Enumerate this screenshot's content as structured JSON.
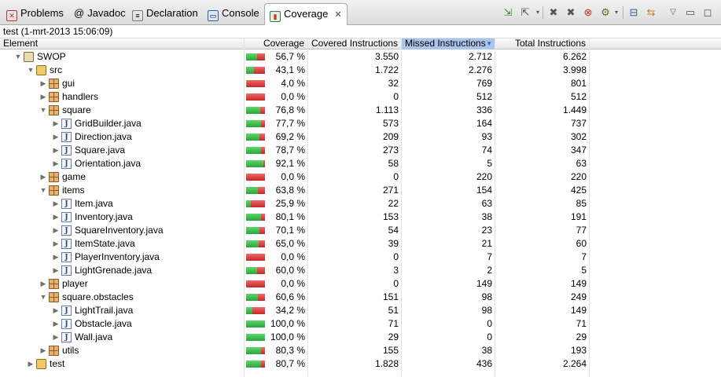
{
  "tabs": [
    {
      "label": "Problems",
      "icon": "problems-icon",
      "active": false
    },
    {
      "label": "Javadoc",
      "icon": "javadoc-icon",
      "active": false
    },
    {
      "label": "Declaration",
      "icon": "declaration-icon",
      "active": false
    },
    {
      "label": "Console",
      "icon": "console-icon",
      "active": false
    },
    {
      "label": "Coverage",
      "icon": "coverage-icon",
      "active": true
    }
  ],
  "toolbar": [
    "export-icon",
    "import-icon",
    "remove-session-icon",
    "remove-all-sessions-icon",
    "merge-sessions-icon",
    "relaunch-icon",
    "collapse-all-icon",
    "link-with-editor-icon",
    "view-menu-icon",
    "minimize-icon",
    "maximize-icon"
  ],
  "session_title": "test (1-mrt-2013 15:06:09)",
  "columns": {
    "element": "Element",
    "coverage": "Coverage",
    "covered": "Covered Instructions",
    "missed": "Missed Instructions",
    "total": "Total Instructions"
  },
  "rows": [
    {
      "name": "SWOP",
      "type": "project",
      "depth": 0,
      "expanded": true,
      "coverage": "56,7 %",
      "cov": 0.567,
      "covered": "3.550",
      "missed": "2.712",
      "total": "6.262"
    },
    {
      "name": "src",
      "type": "folder",
      "depth": 1,
      "expanded": true,
      "coverage": "43,1 %",
      "cov": 0.431,
      "covered": "1.722",
      "missed": "2.276",
      "total": "3.998"
    },
    {
      "name": "gui",
      "type": "package",
      "depth": 2,
      "expanded": false,
      "coverage": "4,0 %",
      "cov": 0.04,
      "covered": "32",
      "missed": "769",
      "total": "801"
    },
    {
      "name": "handlers",
      "type": "package",
      "depth": 2,
      "expanded": false,
      "coverage": "0,0 %",
      "cov": 0.0,
      "covered": "0",
      "missed": "512",
      "total": "512"
    },
    {
      "name": "square",
      "type": "package",
      "depth": 2,
      "expanded": true,
      "coverage": "76,8 %",
      "cov": 0.768,
      "covered": "1.113",
      "missed": "336",
      "total": "1.449"
    },
    {
      "name": "GridBuilder.java",
      "type": "java",
      "depth": 3,
      "expanded": false,
      "coverage": "77,7 %",
      "cov": 0.777,
      "covered": "573",
      "missed": "164",
      "total": "737"
    },
    {
      "name": "Direction.java",
      "type": "java",
      "depth": 3,
      "expanded": false,
      "coverage": "69,2 %",
      "cov": 0.692,
      "covered": "209",
      "missed": "93",
      "total": "302"
    },
    {
      "name": "Square.java",
      "type": "java",
      "depth": 3,
      "expanded": false,
      "coverage": "78,7 %",
      "cov": 0.787,
      "covered": "273",
      "missed": "74",
      "total": "347"
    },
    {
      "name": "Orientation.java",
      "type": "java",
      "depth": 3,
      "expanded": false,
      "coverage": "92,1 %",
      "cov": 0.921,
      "covered": "58",
      "missed": "5",
      "total": "63"
    },
    {
      "name": "game",
      "type": "package",
      "depth": 2,
      "expanded": false,
      "coverage": "0,0 %",
      "cov": 0.0,
      "covered": "0",
      "missed": "220",
      "total": "220"
    },
    {
      "name": "items",
      "type": "package",
      "depth": 2,
      "expanded": true,
      "coverage": "63,8 %",
      "cov": 0.638,
      "covered": "271",
      "missed": "154",
      "total": "425"
    },
    {
      "name": "Item.java",
      "type": "java",
      "depth": 3,
      "expanded": false,
      "coverage": "25,9 %",
      "cov": 0.259,
      "covered": "22",
      "missed": "63",
      "total": "85"
    },
    {
      "name": "Inventory.java",
      "type": "java",
      "depth": 3,
      "expanded": false,
      "coverage": "80,1 %",
      "cov": 0.801,
      "covered": "153",
      "missed": "38",
      "total": "191"
    },
    {
      "name": "SquareInventory.java",
      "type": "java",
      "depth": 3,
      "expanded": false,
      "coverage": "70,1 %",
      "cov": 0.701,
      "covered": "54",
      "missed": "23",
      "total": "77"
    },
    {
      "name": "ItemState.java",
      "type": "java",
      "depth": 3,
      "expanded": false,
      "coverage": "65,0 %",
      "cov": 0.65,
      "covered": "39",
      "missed": "21",
      "total": "60"
    },
    {
      "name": "PlayerInventory.java",
      "type": "java",
      "depth": 3,
      "expanded": false,
      "coverage": "0,0 %",
      "cov": 0.0,
      "covered": "0",
      "missed": "7",
      "total": "7"
    },
    {
      "name": "LightGrenade.java",
      "type": "java",
      "depth": 3,
      "expanded": false,
      "coverage": "60,0 %",
      "cov": 0.6,
      "covered": "3",
      "missed": "2",
      "total": "5"
    },
    {
      "name": "player",
      "type": "package",
      "depth": 2,
      "expanded": false,
      "coverage": "0,0 %",
      "cov": 0.0,
      "covered": "0",
      "missed": "149",
      "total": "149"
    },
    {
      "name": "square.obstacles",
      "type": "package",
      "depth": 2,
      "expanded": true,
      "coverage": "60,6 %",
      "cov": 0.606,
      "covered": "151",
      "missed": "98",
      "total": "249"
    },
    {
      "name": "LightTrail.java",
      "type": "java",
      "depth": 3,
      "expanded": false,
      "coverage": "34,2 %",
      "cov": 0.342,
      "covered": "51",
      "missed": "98",
      "total": "149"
    },
    {
      "name": "Obstacle.java",
      "type": "java",
      "depth": 3,
      "expanded": false,
      "coverage": "100,0 %",
      "cov": 1.0,
      "covered": "71",
      "missed": "0",
      "total": "71"
    },
    {
      "name": "Wall.java",
      "type": "java",
      "depth": 3,
      "expanded": false,
      "coverage": "100,0 %",
      "cov": 1.0,
      "covered": "29",
      "missed": "0",
      "total": "29"
    },
    {
      "name": "utils",
      "type": "package",
      "depth": 2,
      "expanded": false,
      "coverage": "80,3 %",
      "cov": 0.803,
      "covered": "155",
      "missed": "38",
      "total": "193"
    },
    {
      "name": "test",
      "type": "folder",
      "depth": 1,
      "expanded": false,
      "coverage": "80,7 %",
      "cov": 0.807,
      "covered": "1.828",
      "missed": "436",
      "total": "2.264"
    }
  ],
  "colors": {
    "covered": "#2aa43a",
    "missed": "#c52828",
    "sort_header": "#a9c5ea"
  }
}
